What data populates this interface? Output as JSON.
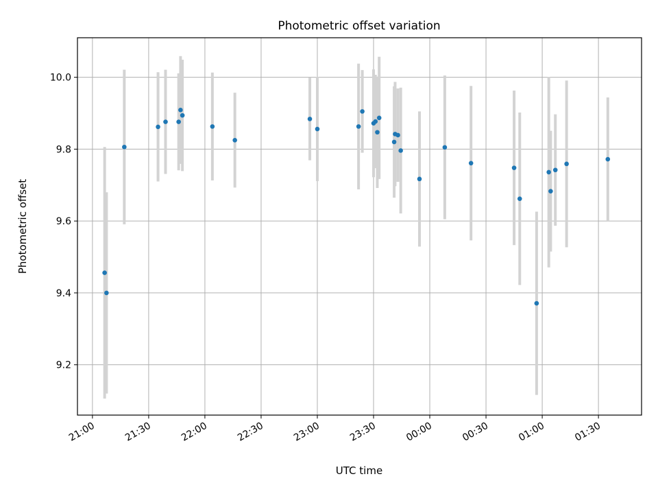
{
  "chart_data": {
    "type": "scatter",
    "title": "Photometric offset variation",
    "xlabel": "UTC time",
    "ylabel": "Photometric offset",
    "xlim": [
      "20:52",
      "01:53"
    ],
    "ylim": [
      9.06,
      10.11
    ],
    "grid": true,
    "error_bar_color": "#d3d3d3",
    "point_color": "#1f77b4",
    "xticks": [
      {
        "time": "21:00",
        "label": "21:00"
      },
      {
        "time": "21:30",
        "label": "21:30"
      },
      {
        "time": "22:00",
        "label": "22:00"
      },
      {
        "time": "22:30",
        "label": "22:30"
      },
      {
        "time": "23:00",
        "label": "23:00"
      },
      {
        "time": "23:30",
        "label": "23:30"
      },
      {
        "time": "00:00",
        "label": "00:00"
      },
      {
        "time": "00:30",
        "label": "00:30"
      },
      {
        "time": "01:00",
        "label": "01:00"
      },
      {
        "time": "01:30",
        "label": "01:30"
      }
    ],
    "yticks": [
      {
        "value": 9.2,
        "label": "9.2"
      },
      {
        "value": 9.4,
        "label": "9.4"
      },
      {
        "value": 9.6,
        "label": "9.6"
      },
      {
        "value": 9.8,
        "label": "9.8"
      },
      {
        "value": 10.0,
        "label": "10.0"
      }
    ],
    "points": [
      {
        "time": "21:06:30",
        "y": 9.456,
        "err": 0.35
      },
      {
        "time": "21:07:30",
        "y": 9.4,
        "err": 0.28
      },
      {
        "time": "21:17:00",
        "y": 9.806,
        "err": 0.215
      },
      {
        "time": "21:35:00",
        "y": 9.862,
        "err": 0.152
      },
      {
        "time": "21:39:00",
        "y": 9.876,
        "err": 0.145
      },
      {
        "time": "21:46:00",
        "y": 9.876,
        "err": 0.135
      },
      {
        "time": "21:47:00",
        "y": 9.909,
        "err": 0.15
      },
      {
        "time": "21:48:00",
        "y": 9.894,
        "err": 0.155
      },
      {
        "time": "22:04:00",
        "y": 9.863,
        "err": 0.15
      },
      {
        "time": "22:16:00",
        "y": 9.825,
        "err": 0.132
      },
      {
        "time": "22:56:00",
        "y": 9.884,
        "err": 0.115
      },
      {
        "time": "23:00:00",
        "y": 9.856,
        "err": 0.145
      },
      {
        "time": "23:22:00",
        "y": 9.863,
        "err": 0.175
      },
      {
        "time": "23:24:00",
        "y": 9.905,
        "err": 0.115
      },
      {
        "time": "23:30:00",
        "y": 9.872,
        "err": 0.15
      },
      {
        "time": "23:31:00",
        "y": 9.877,
        "err": 0.13
      },
      {
        "time": "23:32:00",
        "y": 9.847,
        "err": 0.155
      },
      {
        "time": "23:33:00",
        "y": 9.887,
        "err": 0.17
      },
      {
        "time": "23:41:00",
        "y": 9.82,
        "err": 0.155
      },
      {
        "time": "23:41:30",
        "y": 9.842,
        "err": 0.145
      },
      {
        "time": "23:43:00",
        "y": 9.839,
        "err": 0.13
      },
      {
        "time": "23:44:30",
        "y": 9.796,
        "err": 0.175
      },
      {
        "time": "23:54:30",
        "y": 9.717,
        "err": 0.188
      },
      {
        "time": "00:08:00",
        "y": 9.805,
        "err": 0.2
      },
      {
        "time": "00:22:00",
        "y": 9.761,
        "err": 0.215
      },
      {
        "time": "00:45:00",
        "y": 9.748,
        "err": 0.215
      },
      {
        "time": "00:48:00",
        "y": 9.662,
        "err": 0.24
      },
      {
        "time": "00:57:00",
        "y": 9.371,
        "err": 0.255
      },
      {
        "time": "01:03:30",
        "y": 9.736,
        "err": 0.265
      },
      {
        "time": "01:04:30",
        "y": 9.683,
        "err": 0.168
      },
      {
        "time": "01:07:00",
        "y": 9.742,
        "err": 0.155
      },
      {
        "time": "01:13:00",
        "y": 9.759,
        "err": 0.232
      },
      {
        "time": "01:35:00",
        "y": 9.772,
        "err": 0.172
      }
    ]
  }
}
